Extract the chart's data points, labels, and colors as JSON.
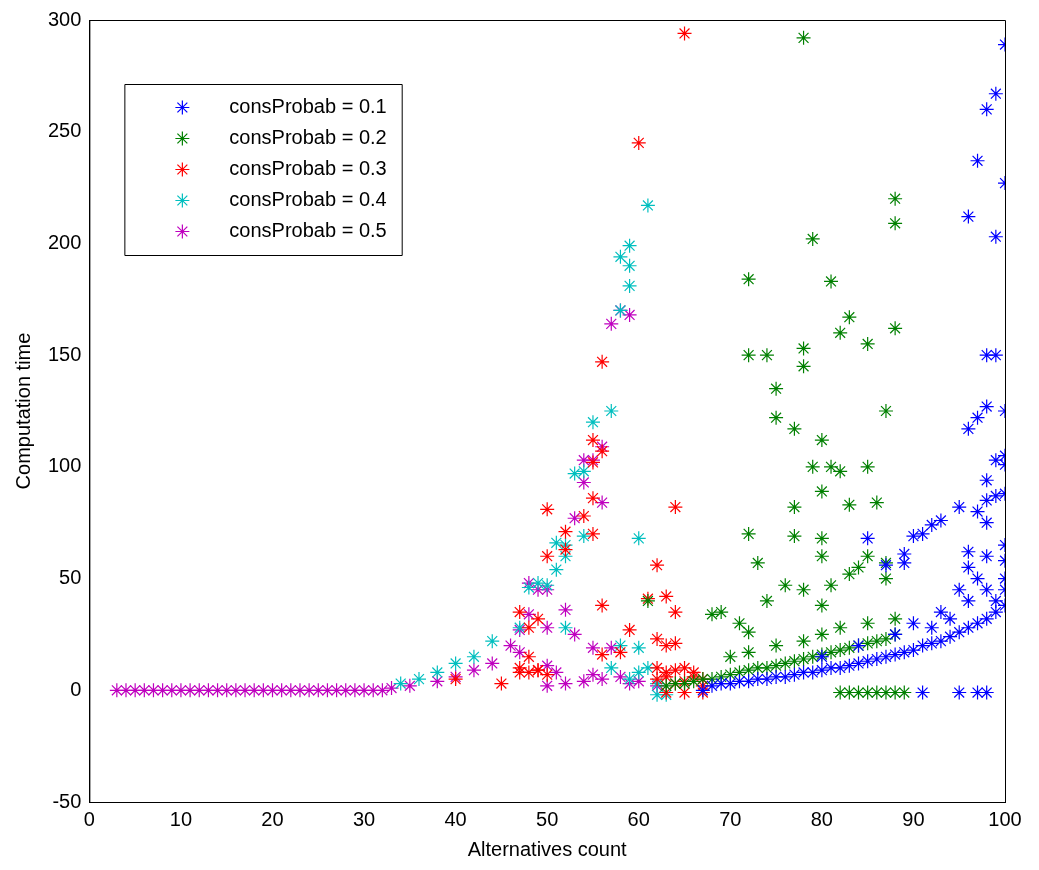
{
  "chart_data": {
    "type": "scatter",
    "xlabel": "Alternatives count",
    "ylabel": "Computation time",
    "xlim": [
      0,
      100
    ],
    "ylim": [
      -50,
      300
    ],
    "xticks": [
      0,
      10,
      20,
      30,
      40,
      50,
      60,
      70,
      80,
      90,
      100
    ],
    "yticks": [
      -50,
      0,
      50,
      100,
      150,
      200,
      250,
      300
    ],
    "grid": false,
    "legend": "top left",
    "marker": "cross",
    "series": [
      {
        "name": "consProbab = 0.1",
        "color": "#0000ff",
        "x": [
          67,
          68,
          69,
          70,
          71,
          72,
          73,
          74,
          75,
          76,
          77,
          78,
          79,
          80,
          81,
          82,
          83,
          84,
          85,
          86,
          87,
          88,
          89,
          90,
          91,
          92,
          93,
          94,
          95,
          96,
          97,
          98,
          99,
          100,
          80,
          84,
          88,
          90,
          92,
          94,
          96,
          98,
          100,
          93,
          95,
          97,
          99,
          100,
          96,
          98,
          91,
          95,
          97,
          98,
          100,
          99,
          98,
          97,
          96,
          100,
          99,
          98,
          100,
          99,
          98,
          97,
          96,
          100,
          100,
          99,
          98,
          98,
          97,
          95,
          93,
          92,
          91,
          90,
          89,
          89,
          87,
          85,
          100,
          100,
          99,
          98,
          100,
          96
        ],
        "values": [
          0,
          2,
          3,
          3,
          4,
          4,
          5,
          5,
          6,
          6,
          7,
          8,
          8,
          9,
          10,
          10,
          11,
          12,
          13,
          14,
          15,
          16,
          17,
          18,
          20,
          21,
          22,
          24,
          26,
          28,
          30,
          32,
          35,
          38,
          15,
          20,
          25,
          30,
          28,
          32,
          40,
          45,
          50,
          35,
          45,
          50,
          40,
          45,
          55,
          60,
          -1,
          -1,
          -1,
          -1,
          289,
          267,
          260,
          237,
          212,
          227,
          203,
          127,
          125,
          150,
          150,
          122,
          117,
          105,
          101,
          103,
          94,
          85,
          80,
          82,
          76,
          74,
          70,
          69,
          61,
          57,
          56,
          68,
          65,
          88,
          87,
          75,
          58,
          62
        ]
      },
      {
        "name": "consProbab = 0.2",
        "color": "#008000",
        "x": [
          63,
          64,
          65,
          66,
          67,
          68,
          69,
          70,
          71,
          72,
          73,
          74,
          75,
          76,
          77,
          78,
          79,
          80,
          81,
          82,
          83,
          84,
          85,
          86,
          87,
          88,
          70,
          72,
          75,
          78,
          80,
          82,
          85,
          88,
          82,
          83,
          84,
          85,
          86,
          87,
          88,
          89,
          78,
          81,
          88,
          88,
          79,
          72,
          83,
          82,
          88,
          85,
          74,
          72,
          78,
          78,
          75,
          75,
          77,
          87,
          80,
          79,
          81,
          82,
          85,
          80,
          83,
          86,
          72,
          77,
          77,
          80,
          73,
          80,
          85,
          84,
          83,
          87,
          87,
          78,
          76,
          81,
          74,
          80,
          68,
          69,
          61,
          71,
          72
        ],
        "values": [
          2,
          3,
          3,
          4,
          5,
          5,
          6,
          7,
          8,
          9,
          10,
          10,
          11,
          12,
          13,
          14,
          15,
          16,
          17,
          18,
          19,
          20,
          21,
          22,
          23,
          25,
          15,
          17,
          20,
          22,
          25,
          28,
          30,
          32,
          -1,
          -1,
          -1,
          -1,
          -1,
          -1,
          -1,
          -1,
          292,
          183,
          220,
          209,
          202,
          184,
          167,
          160,
          162,
          155,
          150,
          150,
          153,
          145,
          135,
          122,
          117,
          125,
          112,
          100,
          100,
          98,
          100,
          89,
          83,
          84,
          70,
          82,
          69,
          68,
          57,
          60,
          60,
          55,
          52,
          57,
          50,
          45,
          47,
          47,
          40,
          38,
          34,
          35,
          40,
          30,
          26
        ]
      },
      {
        "name": "consProbab = 0.3",
        "color": "#ff0000",
        "x": [
          40,
          45,
          47,
          48,
          49,
          50,
          62,
          63,
          64,
          65,
          66,
          67,
          62,
          63,
          64,
          65,
          66,
          67,
          63,
          65,
          67,
          65,
          60,
          56,
          55,
          56,
          55,
          55,
          64,
          50,
          54,
          55,
          52,
          50,
          52,
          62,
          63,
          61,
          56,
          64,
          47,
          49,
          48,
          59,
          62,
          64,
          63,
          58,
          56,
          47,
          49,
          48
        ],
        "values": [
          5,
          3,
          10,
          8,
          9,
          7,
          5,
          8,
          3,
          10,
          6,
          2,
          10,
          6,
          9,
          4,
          8,
          5,
          -1,
          -1,
          -1,
          294,
          245,
          147,
          112,
          107,
          102,
          86,
          82,
          81,
          78,
          70,
          71,
          60,
          63,
          56,
          42,
          41,
          38,
          35,
          35,
          32,
          28,
          27,
          23,
          21,
          20,
          17,
          16,
          8,
          9,
          15
        ]
      },
      {
        "name": "consProbab = 0.4",
        "color": "#00bfbf",
        "x": [
          34,
          36,
          38,
          40,
          42,
          44,
          47,
          48,
          49,
          50,
          51,
          51,
          52,
          52,
          53,
          54,
          54,
          55,
          57,
          58,
          58,
          59,
          59,
          59,
          60,
          61,
          52,
          57,
          58,
          59,
          60,
          61,
          62,
          62,
          63,
          60
        ],
        "values": [
          3,
          5,
          8,
          12,
          15,
          22,
          28,
          46,
          48,
          47,
          66,
          54,
          65,
          60,
          97,
          98,
          69,
          120,
          125,
          170,
          194,
          199,
          190,
          181,
          68,
          217,
          28,
          10,
          20,
          5,
          19,
          10,
          3,
          -2,
          -2,
          8
        ]
      },
      {
        "name": "consProbab = 0.5",
        "color": "#bf00bf",
        "x": [
          3,
          4,
          5,
          6,
          7,
          8,
          9,
          10,
          11,
          12,
          13,
          14,
          15,
          16,
          17,
          18,
          19,
          20,
          21,
          22,
          23,
          24,
          25,
          26,
          27,
          28,
          29,
          30,
          31,
          32,
          33,
          35,
          38,
          40,
          42,
          44,
          46,
          47,
          47,
          48,
          48,
          49,
          50,
          50,
          50,
          52,
          53,
          53,
          54,
          54,
          55,
          55,
          56,
          56,
          57,
          57,
          58,
          59,
          50,
          52,
          54,
          56,
          58,
          60,
          62,
          51,
          55,
          59
        ],
        "values": [
          0,
          0,
          0,
          0,
          0,
          0,
          0,
          0,
          0,
          0,
          0,
          0,
          0,
          0,
          0,
          0,
          0,
          0,
          0,
          0,
          0,
          0,
          0,
          0,
          0,
          0,
          0,
          0,
          0,
          0,
          1,
          2,
          4,
          6,
          9,
          12,
          20,
          27,
          17,
          48,
          34,
          45,
          28,
          11,
          45,
          36,
          25,
          77,
          103,
          93,
          103,
          19,
          109,
          84,
          19,
          164,
          170,
          168,
          2,
          3,
          4,
          5,
          6,
          4,
          2,
          8,
          7,
          3
        ]
      }
    ]
  }
}
